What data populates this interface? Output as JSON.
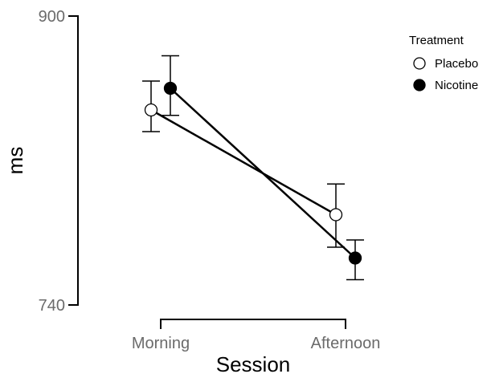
{
  "chart_data": {
    "type": "line",
    "title": "",
    "xlabel": "Session",
    "ylabel": "ms",
    "categories": [
      "Morning",
      "Afternoon"
    ],
    "ylim": [
      740,
      900
    ],
    "y_ticks": [
      740,
      900
    ],
    "grid": false,
    "legend_title": "Treatment",
    "legend_position": "top-right",
    "series": [
      {
        "name": "Placebo",
        "marker": "open-circle",
        "color": "#000000",
        "values": [
          848,
          790
        ],
        "error_low": [
          836,
          772
        ],
        "error_high": [
          864,
          807
        ]
      },
      {
        "name": "Nicotine",
        "marker": "filled-circle",
        "color": "#000000",
        "values": [
          860,
          766
        ],
        "error_low": [
          845,
          754
        ],
        "error_high": [
          878,
          776
        ]
      }
    ]
  }
}
